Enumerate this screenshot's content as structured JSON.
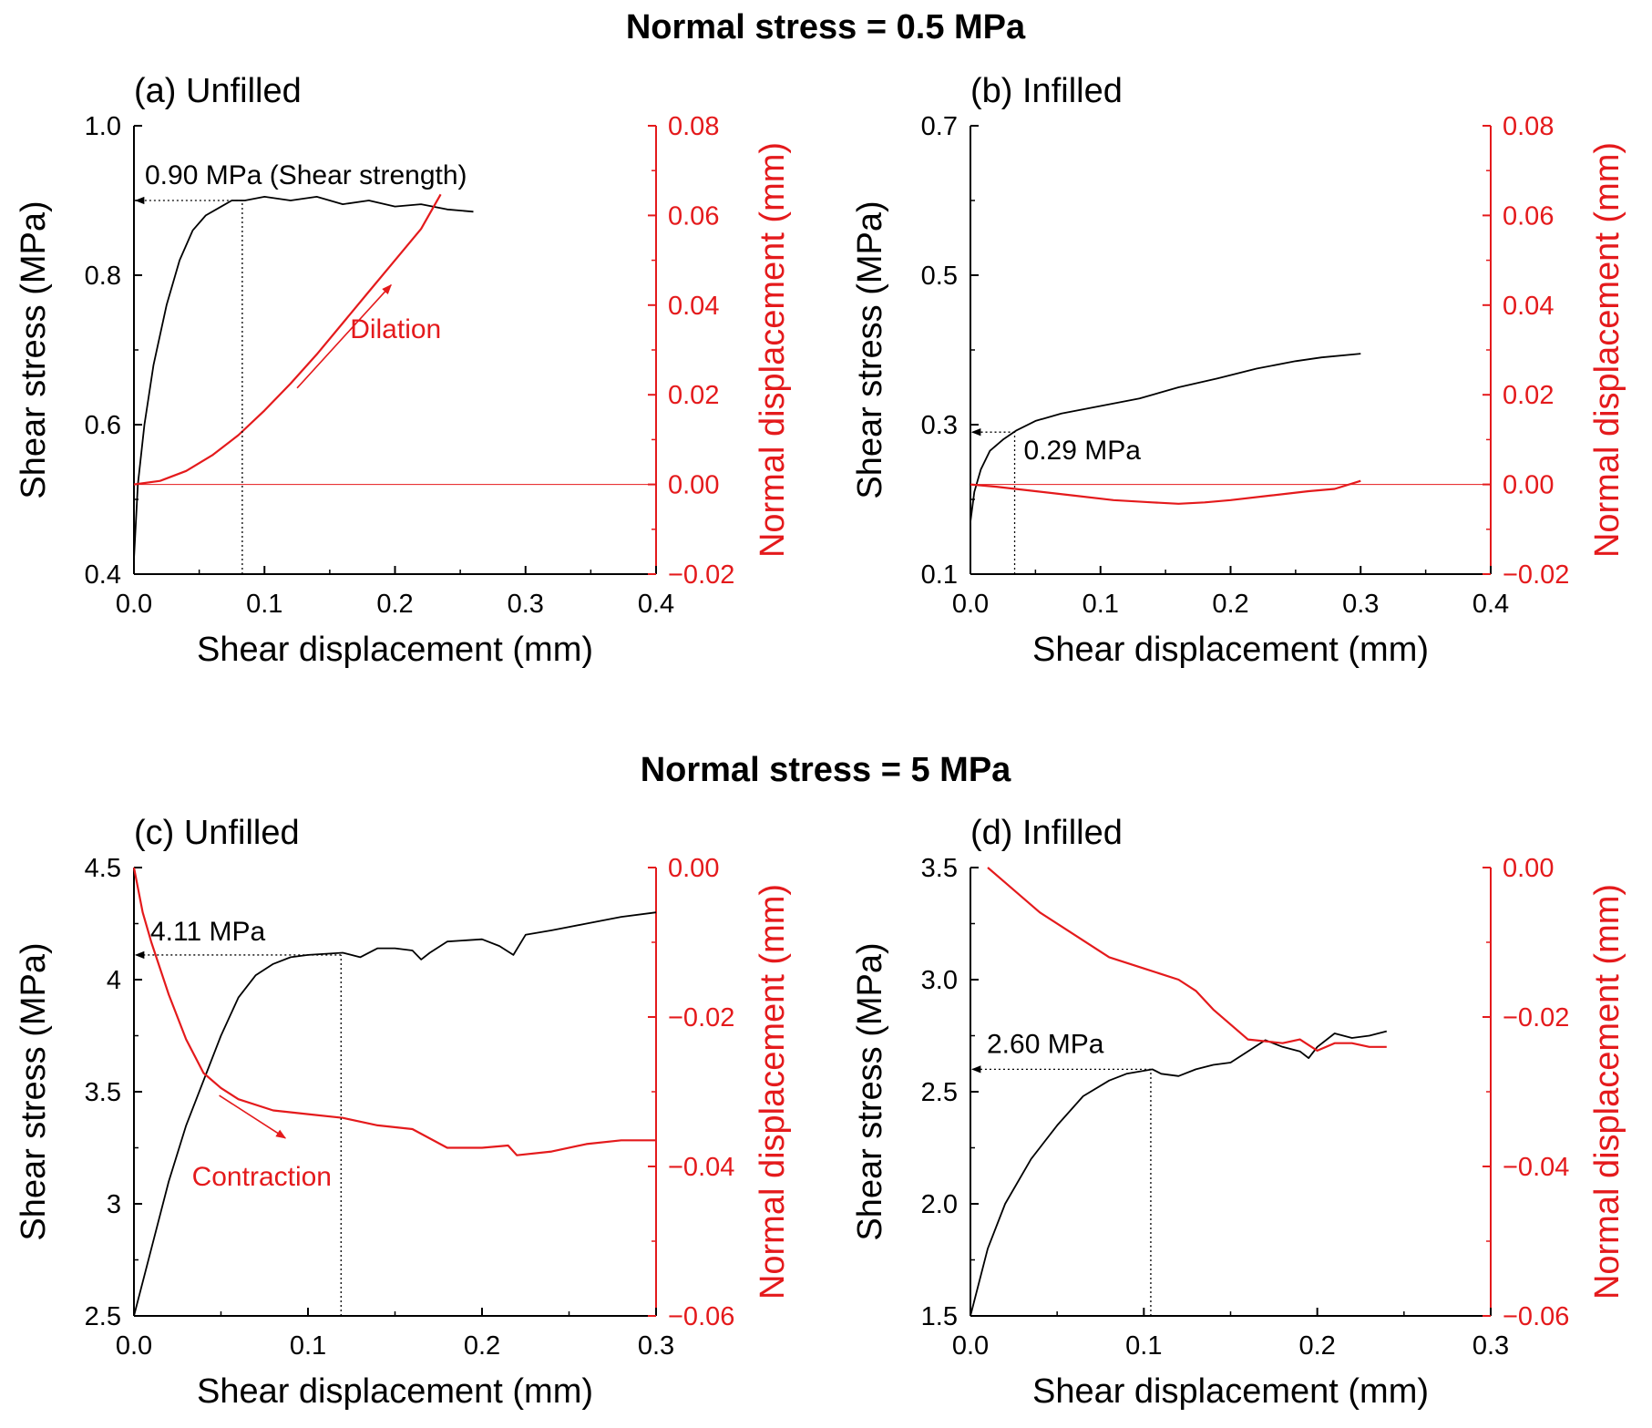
{
  "colors": {
    "stress": "#000000",
    "normal": "#e41a1c"
  },
  "sections": [
    {
      "title": "Normal stress = 0.5 MPa"
    },
    {
      "title": "Normal stress = 5 MPa"
    }
  ],
  "chart_data": [
    {
      "type": "line",
      "panel": "a",
      "title": "(a) Unfilled",
      "xlabel": "Shear displacement (mm)",
      "ylabel": "Shear stress (MPa)",
      "y2label": "Normal displacement (mm)",
      "xlim": [
        0,
        0.4
      ],
      "ylim": [
        0.4,
        1.0
      ],
      "y2lim": [
        -0.02,
        0.08
      ],
      "xticks": [
        0,
        0.1,
        0.2,
        0.3,
        0.4
      ],
      "xtick_labels": [
        "0.0",
        "0.1",
        "0.2",
        "0.3",
        "0.4"
      ],
      "yticks": [
        0.4,
        0.6,
        0.8,
        1.0
      ],
      "ytick_labels": [
        "0.4",
        "0.6",
        "0.8",
        "1.0"
      ],
      "y2ticks": [
        -0.02,
        0,
        0.02,
        0.04,
        0.06,
        0.08
      ],
      "y2tick_labels": [
        "−0.02",
        "0.00",
        "0.02",
        "0.04",
        "0.06",
        "0.08"
      ],
      "series": [
        {
          "name": "Shear stress",
          "axis": "y",
          "x": [
            0,
            0.003,
            0.008,
            0.015,
            0.025,
            0.035,
            0.045,
            0.055,
            0.065,
            0.075,
            0.085,
            0.1,
            0.12,
            0.14,
            0.16,
            0.18,
            0.2,
            0.22,
            0.24,
            0.26
          ],
          "y": [
            0.42,
            0.52,
            0.6,
            0.68,
            0.76,
            0.82,
            0.86,
            0.88,
            0.89,
            0.9,
            0.9,
            0.905,
            0.9,
            0.905,
            0.895,
            0.9,
            0.892,
            0.895,
            0.888,
            0.885
          ]
        },
        {
          "name": "Normal displacement",
          "axis": "y2",
          "x": [
            0,
            0.02,
            0.04,
            0.06,
            0.08,
            0.1,
            0.12,
            0.14,
            0.16,
            0.18,
            0.2,
            0.22,
            0.235
          ],
          "y": [
            0,
            0.0008,
            0.003,
            0.0065,
            0.011,
            0.0165,
            0.0225,
            0.029,
            0.036,
            0.043,
            0.05,
            0.057,
            0.0647
          ]
        }
      ],
      "ref_lines": {
        "y2_zero": 0
      },
      "marker": {
        "x": 0.083,
        "y": 0.9,
        "label": "0.90 MPa (Shear strength)"
      },
      "arrow": {
        "label": "Dilation",
        "from": [
          0.125,
          0.0215
        ],
        "to": [
          0.197,
          0.0445
        ]
      }
    },
    {
      "type": "line",
      "panel": "b",
      "title": "(b) Infilled",
      "xlabel": "Shear displacement (mm)",
      "ylabel": "Shear stress (MPa)",
      "y2label": "Normal displacement (mm)",
      "xlim": [
        0,
        0.4
      ],
      "ylim": [
        0.1,
        0.7
      ],
      "y2lim": [
        -0.02,
        0.08
      ],
      "xticks": [
        0,
        0.1,
        0.2,
        0.3,
        0.4
      ],
      "xtick_labels": [
        "0.0",
        "0.1",
        "0.2",
        "0.3",
        "0.4"
      ],
      "yticks": [
        0.1,
        0.3,
        0.5,
        0.7
      ],
      "ytick_labels": [
        "0.1",
        "0.3",
        "0.5",
        "0.7"
      ],
      "y2ticks": [
        -0.02,
        0,
        0.02,
        0.04,
        0.06,
        0.08
      ],
      "y2tick_labels": [
        "−0.02",
        "0.00",
        "0.02",
        "0.04",
        "0.06",
        "0.08"
      ],
      "series": [
        {
          "name": "Shear stress",
          "axis": "y",
          "x": [
            0,
            0.003,
            0.008,
            0.015,
            0.025,
            0.035,
            0.05,
            0.07,
            0.1,
            0.13,
            0.16,
            0.19,
            0.22,
            0.25,
            0.27,
            0.3
          ],
          "y": [
            0.17,
            0.21,
            0.24,
            0.265,
            0.28,
            0.292,
            0.305,
            0.315,
            0.325,
            0.335,
            0.35,
            0.362,
            0.375,
            0.385,
            0.39,
            0.395
          ]
        },
        {
          "name": "Normal displacement",
          "axis": "y2",
          "x": [
            0,
            0.02,
            0.05,
            0.08,
            0.11,
            0.14,
            0.16,
            0.18,
            0.2,
            0.23,
            0.26,
            0.28,
            0.3
          ],
          "y": [
            0,
            -0.0005,
            -0.0015,
            -0.0025,
            -0.0035,
            -0.004,
            -0.0043,
            -0.004,
            -0.0035,
            -0.0025,
            -0.0015,
            -0.001,
            0.0008
          ]
        }
      ],
      "ref_lines": {
        "y2_zero": 0
      },
      "marker": {
        "x": 0.034,
        "y": 0.29,
        "label": "0.29 MPa"
      }
    },
    {
      "type": "line",
      "panel": "c",
      "title": "(c) Unfilled",
      "xlabel": "Shear displacement (mm)",
      "ylabel": "Shear stress (MPa)",
      "y2label": "Normal displacement (mm)",
      "xlim": [
        0,
        0.3
      ],
      "ylim": [
        2.5,
        4.5
      ],
      "y2lim": [
        -0.06,
        0
      ],
      "xticks": [
        0,
        0.1,
        0.2,
        0.3
      ],
      "xtick_labels": [
        "0.0",
        "0.1",
        "0.2",
        "0.3"
      ],
      "yticks": [
        2.5,
        3,
        3.5,
        4,
        4.5
      ],
      "ytick_labels": [
        "2.5",
        "3",
        "3.5",
        "4",
        "4.5"
      ],
      "y2ticks": [
        -0.06,
        -0.04,
        -0.02,
        0
      ],
      "y2tick_labels": [
        "−0.06",
        "−0.04",
        "−0.02",
        "0.00"
      ],
      "series": [
        {
          "name": "Shear stress",
          "axis": "y",
          "x": [
            0,
            0.01,
            0.02,
            0.03,
            0.04,
            0.05,
            0.06,
            0.07,
            0.08,
            0.09,
            0.1,
            0.12,
            0.13,
            0.14,
            0.15,
            0.16,
            0.165,
            0.17,
            0.18,
            0.2,
            0.21,
            0.218,
            0.225,
            0.24,
            0.26,
            0.28,
            0.3
          ],
          "y": [
            2.5,
            2.8,
            3.1,
            3.35,
            3.55,
            3.75,
            3.92,
            4.02,
            4.07,
            4.1,
            4.11,
            4.12,
            4.1,
            4.14,
            4.14,
            4.13,
            4.09,
            4.12,
            4.17,
            4.18,
            4.15,
            4.11,
            4.2,
            4.22,
            4.25,
            4.28,
            4.3
          ]
        },
        {
          "name": "Normal displacement",
          "axis": "y2",
          "x": [
            0,
            0.005,
            0.01,
            0.02,
            0.03,
            0.04,
            0.05,
            0.06,
            0.08,
            0.1,
            0.12,
            0.14,
            0.16,
            0.18,
            0.2,
            0.215,
            0.22,
            0.24,
            0.26,
            0.28,
            0.3
          ],
          "y": [
            0,
            -0.006,
            -0.01,
            -0.017,
            -0.023,
            -0.0275,
            -0.0295,
            -0.031,
            -0.0325,
            -0.033,
            -0.0335,
            -0.0345,
            -0.035,
            -0.0375,
            -0.0375,
            -0.0372,
            -0.0385,
            -0.038,
            -0.037,
            -0.0365,
            -0.0365
          ]
        }
      ],
      "marker": {
        "x": 0.119,
        "y": 4.11,
        "label": "4.11 MPa"
      },
      "arrow": {
        "label": "Contraction",
        "from": [
          0.049,
          -0.0305
        ],
        "to": [
          0.087,
          -0.0362
        ]
      }
    },
    {
      "type": "line",
      "panel": "d",
      "title": "(d) Infilled",
      "xlabel": "Shear displacement (mm)",
      "ylabel": "Shear stress (MPa)",
      "y2label": "Normal displacement (mm)",
      "xlim": [
        0,
        0.3
      ],
      "ylim": [
        1.5,
        3.5
      ],
      "y2lim": [
        -0.06,
        0
      ],
      "xticks": [
        0,
        0.1,
        0.2,
        0.3
      ],
      "xtick_labels": [
        "0.0",
        "0.1",
        "0.2",
        "0.3"
      ],
      "yticks": [
        1.5,
        2.0,
        2.5,
        3.0,
        3.5
      ],
      "ytick_labels": [
        "1.5",
        "2.0",
        "2.5",
        "3.0",
        "3.5"
      ],
      "y2ticks": [
        -0.06,
        -0.04,
        -0.02,
        0
      ],
      "y2tick_labels": [
        "−0.06",
        "−0.04",
        "−0.02",
        "0.00"
      ],
      "series": [
        {
          "name": "Shear stress",
          "axis": "y",
          "x": [
            0,
            0.01,
            0.02,
            0.035,
            0.05,
            0.065,
            0.08,
            0.09,
            0.105,
            0.11,
            0.12,
            0.13,
            0.14,
            0.15,
            0.16,
            0.17,
            0.18,
            0.19,
            0.195,
            0.2,
            0.21,
            0.22,
            0.23,
            0.24
          ],
          "y": [
            1.5,
            1.8,
            2.0,
            2.2,
            2.35,
            2.48,
            2.55,
            2.58,
            2.6,
            2.58,
            2.57,
            2.6,
            2.62,
            2.63,
            2.68,
            2.73,
            2.7,
            2.68,
            2.65,
            2.7,
            2.76,
            2.74,
            2.75,
            2.77
          ]
        },
        {
          "name": "Normal displacement",
          "axis": "y2",
          "x": [
            0.01,
            0.02,
            0.04,
            0.06,
            0.08,
            0.1,
            0.12,
            0.13,
            0.14,
            0.15,
            0.16,
            0.18,
            0.19,
            0.2,
            0.21,
            0.22,
            0.23,
            0.24
          ],
          "y": [
            0,
            -0.002,
            -0.006,
            -0.009,
            -0.012,
            -0.0135,
            -0.015,
            -0.0165,
            -0.019,
            -0.021,
            -0.023,
            -0.0235,
            -0.023,
            -0.0245,
            -0.0235,
            -0.0235,
            -0.024,
            -0.024
          ]
        }
      ],
      "marker": {
        "x": 0.104,
        "y": 2.6,
        "label": "2.60 MPa"
      }
    }
  ]
}
